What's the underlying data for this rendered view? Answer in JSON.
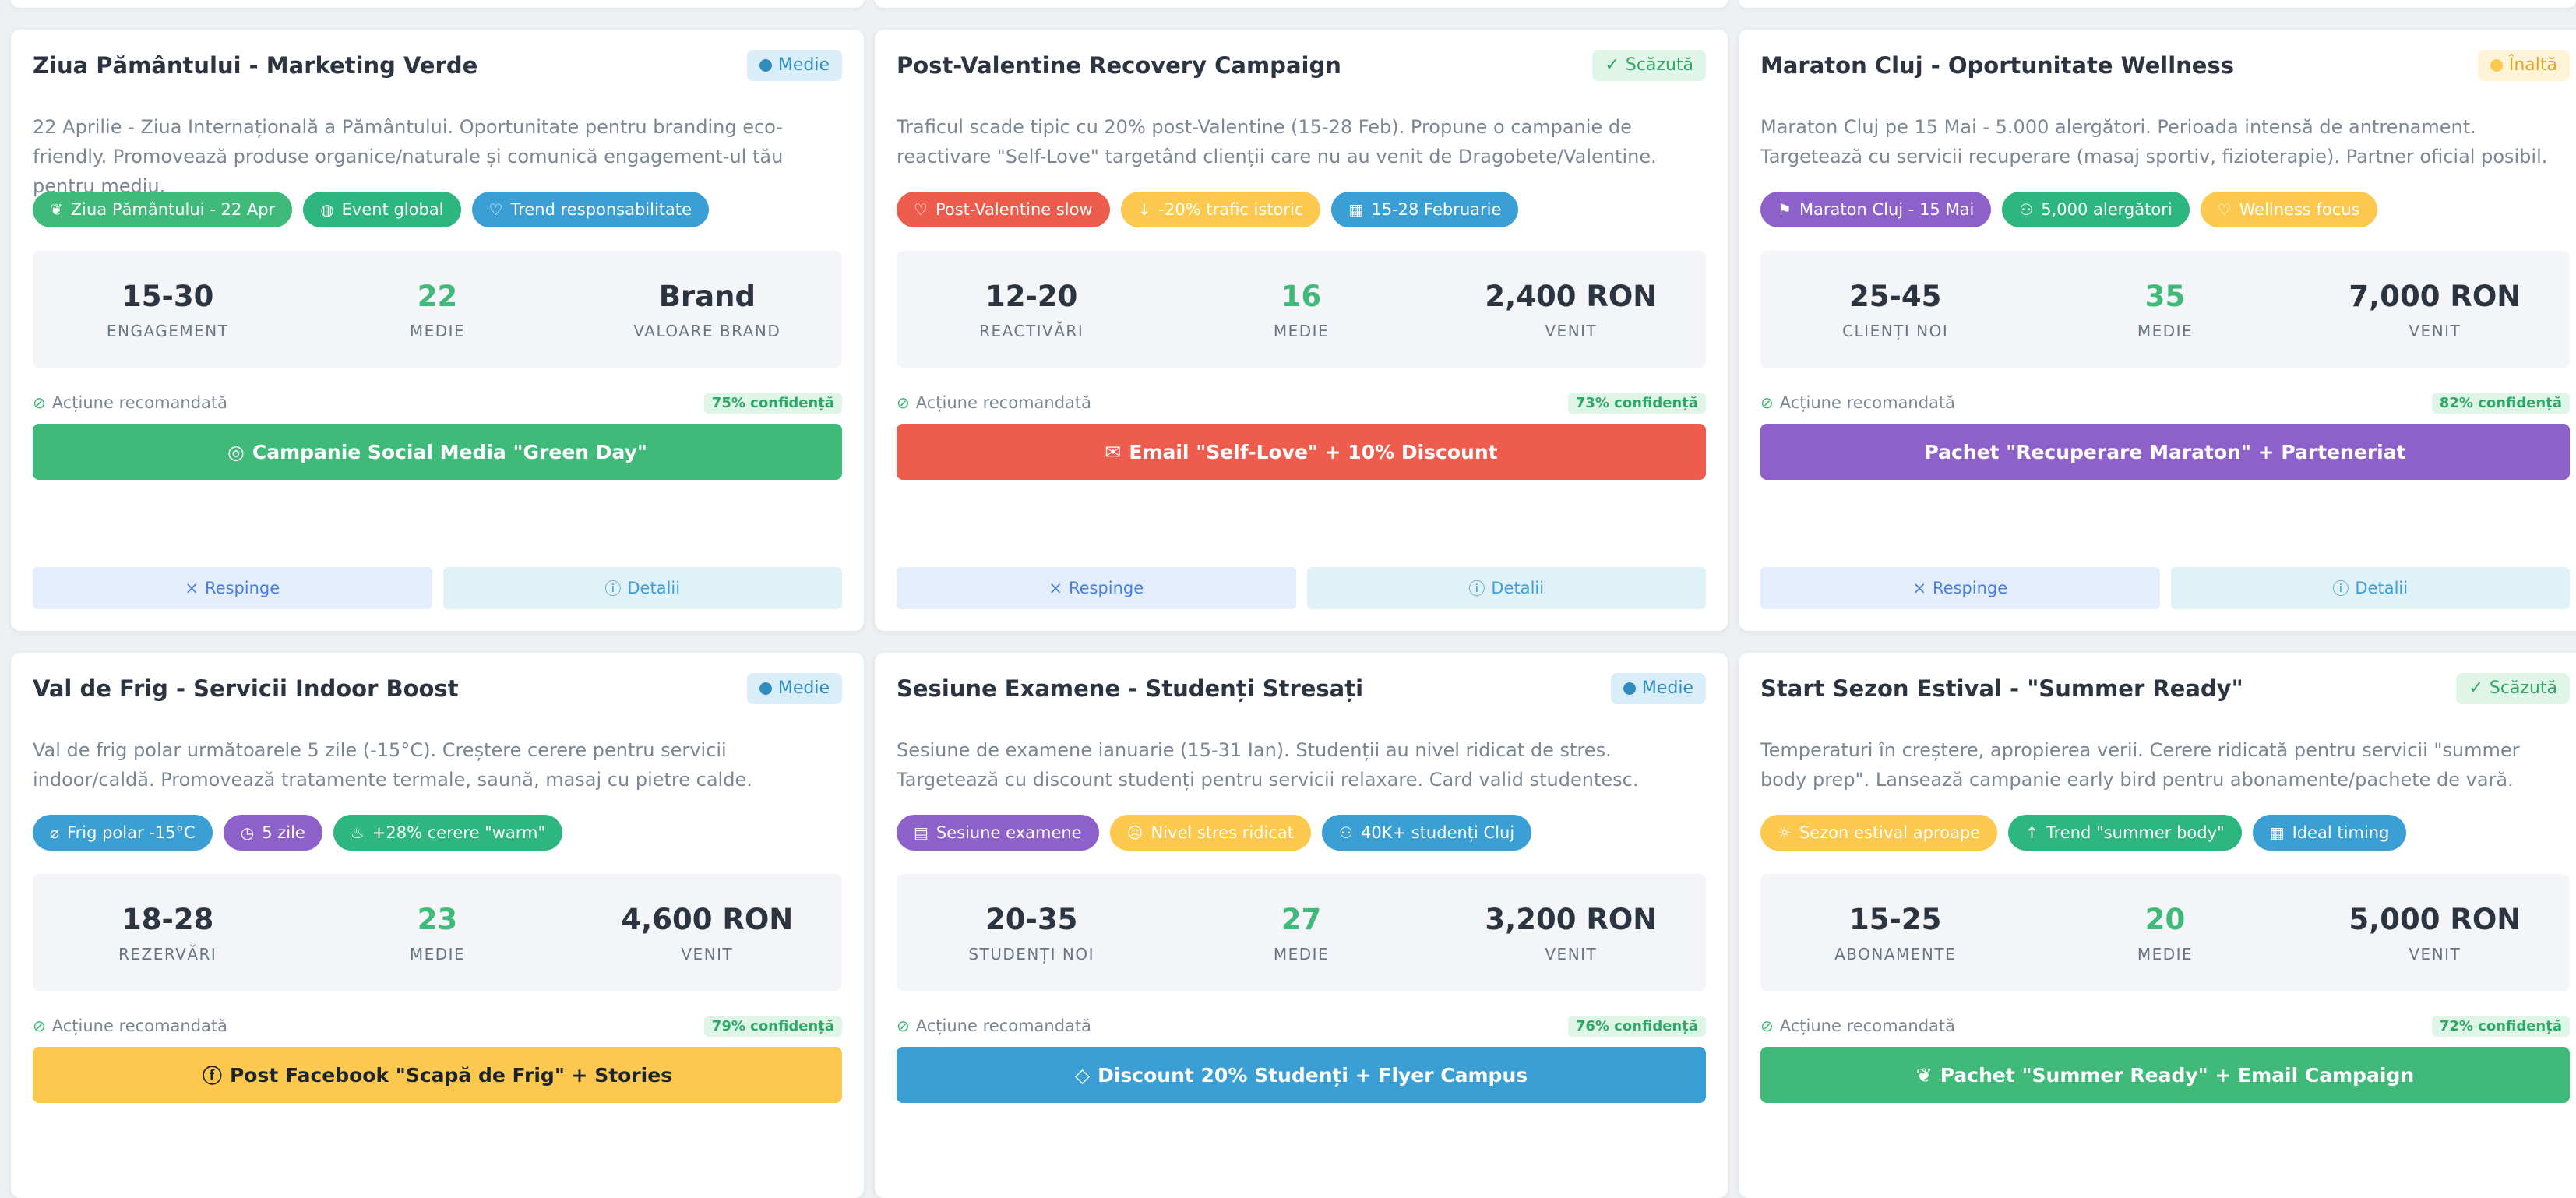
{
  "cards": [
    {
      "title": "Ziua Pământului - Marketing Verde",
      "priority": "Medie",
      "priority_type": "medie",
      "description": "22 Aprilie - Ziua Internațională a Pământului. Oportunitate pentru branding eco-friendly. Promovează produse organice/naturale și comunică engagement-ul tău pentru mediu.",
      "tags": [
        {
          "icon": "leaf-icon",
          "glyph": "❦",
          "label": "Ziua Pământului - 22 Apr",
          "color": "c-green"
        },
        {
          "icon": "globe-icon",
          "glyph": "◍",
          "label": "Event global",
          "color": "c-teal"
        },
        {
          "icon": "heart-icon",
          "glyph": "♡",
          "label": "Trend responsabilitate",
          "color": "c-blue"
        }
      ],
      "stats": [
        {
          "value": "15-30",
          "label": "ENGAGEMENT"
        },
        {
          "value": "22",
          "label": "MEDIE"
        },
        {
          "value": "Brand",
          "label": "VALOARE BRAND"
        }
      ],
      "rec_label": "Acțiune recomandată",
      "confidence": "75% confidență",
      "action": {
        "icon": "instagram-icon",
        "glyph": "◎",
        "label": "Campanie Social Media \"Green Day\"",
        "color": "#3fba79",
        "dark": false
      },
      "reject_label": "Respinge",
      "details_label": "Detalii"
    },
    {
      "title": "Post-Valentine Recovery Campaign",
      "priority": "Scăzută",
      "priority_type": "scazuta",
      "description": "Traficul scade tipic cu 20% post-Valentine (15-28 Feb). Propune o campanie de reactivare \"Self-Love\" targetând clienții care nu au venit de Dragobete/Valentine.",
      "tags": [
        {
          "icon": "heart-icon",
          "glyph": "♡",
          "label": "Post-Valentine slow",
          "color": "c-red"
        },
        {
          "icon": "arrow-down-icon",
          "glyph": "↓",
          "label": "-20% trafic istoric",
          "color": "c-yellow"
        },
        {
          "icon": "calendar-icon",
          "glyph": "▦",
          "label": "15-28 Februarie",
          "color": "c-blue"
        }
      ],
      "stats": [
        {
          "value": "12-20",
          "label": "REACTIVĂRI"
        },
        {
          "value": "16",
          "label": "MEDIE"
        },
        {
          "value": "2,400 RON",
          "label": "VENIT"
        }
      ],
      "rec_label": "Acțiune recomandată",
      "confidence": "73% confidență",
      "action": {
        "icon": "envelope-icon",
        "glyph": "✉",
        "label": "Email \"Self-Love\" + 10% Discount",
        "color": "#ee5c4e",
        "dark": false
      },
      "reject_label": "Respinge",
      "details_label": "Detalii"
    },
    {
      "title": "Maraton Cluj - Oportunitate Wellness",
      "priority": "Înaltă",
      "priority_type": "inalta",
      "description": "Maraton Cluj pe 15 Mai - 5.000 alergători. Perioada intensă de antrenament. Targetează cu servicii recuperare (masaj sportiv, fizioterapie). Partner oficial posibil.",
      "tags": [
        {
          "icon": "runner-icon",
          "glyph": "⚑",
          "label": "Maraton Cluj - 15 Mai",
          "color": "c-purple"
        },
        {
          "icon": "group-icon",
          "glyph": "⚇",
          "label": "5,000 alergători",
          "color": "c-teal"
        },
        {
          "icon": "heart-icon",
          "glyph": "♡",
          "label": "Wellness focus",
          "color": "c-yellow"
        }
      ],
      "stats": [
        {
          "value": "25-45",
          "label": "CLIENȚI NOI"
        },
        {
          "value": "35",
          "label": "MEDIE"
        },
        {
          "value": "7,000 RON",
          "label": "VENIT"
        }
      ],
      "rec_label": "Acțiune recomandată",
      "confidence": "82% confidență",
      "action": {
        "icon": "",
        "glyph": "",
        "label": "Pachet \"Recuperare Maraton\" + Parteneriat",
        "color": "#8d61c9",
        "dark": false
      },
      "reject_label": "Respinge",
      "details_label": "Detalii"
    },
    {
      "title": "Val de Frig - Servicii Indoor Boost",
      "priority": "Medie",
      "priority_type": "medie",
      "description": "Val de frig polar următoarele 5 zile (-15°C). Creștere cerere pentru servicii indoor/caldă. Promovează tratamente termale, saună, masaj cu pietre calde.",
      "tags": [
        {
          "icon": "thermometer-icon",
          "glyph": "⌀",
          "label": "Frig polar -15°C",
          "color": "c-blue"
        },
        {
          "icon": "clock-icon",
          "glyph": "◷",
          "label": "5 zile",
          "color": "c-purple"
        },
        {
          "icon": "flame-icon",
          "glyph": "♨",
          "label": "+28% cerere \"warm\"",
          "color": "c-teal"
        }
      ],
      "stats": [
        {
          "value": "18-28",
          "label": "REZERVĂRI"
        },
        {
          "value": "23",
          "label": "MEDIE"
        },
        {
          "value": "4,600 RON",
          "label": "VENIT"
        }
      ],
      "rec_label": "Acțiune recomandată",
      "confidence": "79% confidență",
      "action": {
        "icon": "facebook-icon",
        "glyph": "ⓕ",
        "label": "Post Facebook \"Scapă de Frig\" + Stories",
        "color": "#fcc94e",
        "dark": true
      },
      "reject_label": "Respinge",
      "details_label": "Detalii"
    },
    {
      "title": "Sesiune Examene - Studenți Stresați",
      "priority": "Medie",
      "priority_type": "medie",
      "description": "Sesiune de examene ianuarie (15-31 Ian). Studenții au nivel ridicat de stres. Targetează cu discount studenți pentru servicii relaxare. Card valid studentesc.",
      "tags": [
        {
          "icon": "book-icon",
          "glyph": "▤",
          "label": "Sesiune examene",
          "color": "c-purple"
        },
        {
          "icon": "stress-face-icon",
          "glyph": "☹",
          "label": "Nivel stres ridicat",
          "color": "c-yellow"
        },
        {
          "icon": "users-icon",
          "glyph": "⚇",
          "label": "40K+ studenți Cluj",
          "color": "c-blue"
        }
      ],
      "stats": [
        {
          "value": "20-35",
          "label": "STUDENȚI NOI"
        },
        {
          "value": "27",
          "label": "MEDIE"
        },
        {
          "value": "3,200 RON",
          "label": "VENIT"
        }
      ],
      "rec_label": "Acțiune recomandată",
      "confidence": "76% confidență",
      "action": {
        "icon": "tag-icon",
        "glyph": "◇",
        "label": "Discount 20% Studenți + Flyer Campus",
        "color": "#3a9fd4",
        "dark": false
      },
      "reject_label": "Respinge",
      "details_label": "Detalii"
    },
    {
      "title": "Start Sezon Estival - \"Summer Ready\"",
      "priority": "Scăzută",
      "priority_type": "scazuta",
      "description": "Temperaturi în creștere, apropierea verii. Cerere ridicată pentru servicii \"summer body prep\". Lansează campanie early bird pentru abonamente/pachete de vară.",
      "tags": [
        {
          "icon": "sun-icon",
          "glyph": "☼",
          "label": "Sezon estival aproape",
          "color": "c-yellow"
        },
        {
          "icon": "arrow-up-icon",
          "glyph": "↑",
          "label": "Trend \"summer body\"",
          "color": "c-teal"
        },
        {
          "icon": "calendar-icon",
          "glyph": "▦",
          "label": "Ideal timing",
          "color": "c-blue"
        }
      ],
      "stats": [
        {
          "value": "15-25",
          "label": "ABONAMENTE"
        },
        {
          "value": "20",
          "label": "MEDIE"
        },
        {
          "value": "5,000 RON",
          "label": "VENIT"
        }
      ],
      "rec_label": "Acțiune recomandată",
      "confidence": "72% confidență",
      "action": {
        "icon": "leaf-icon",
        "glyph": "❦",
        "label": "Pachet \"Summer Ready\" + Email Campaign",
        "color": "#3fba79",
        "dark": false
      },
      "reject_label": "Respinge",
      "details_label": "Detalii"
    }
  ]
}
